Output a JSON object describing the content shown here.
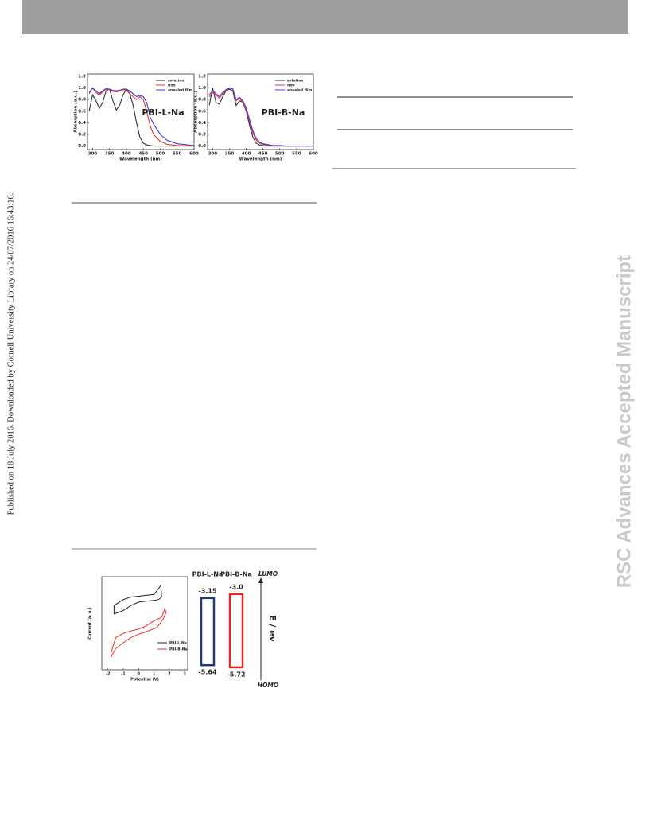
{
  "side_note": "Published on 18 July 2016. Downloaded by Cornell University Library on 24/07/2016 16:43:16.",
  "watermark": "RSC Advances Accepted Manuscript",
  "figures": [
    {
      "type": "line",
      "title": "PBI-L-Na",
      "x_label": "Wavelength (nm)",
      "y_label": "Absorption (a.u.)",
      "xlim": [
        285,
        600
      ],
      "ylim": [
        -0.06,
        1.24
      ],
      "xticks": [
        300,
        350,
        400,
        450,
        500,
        550,
        600
      ],
      "yticks": [
        {
          "value": 0,
          "label": "0.0"
        },
        0.2,
        0.4,
        0.6,
        0.8,
        {
          "value": 1,
          "label": "1.0"
        },
        1.2
      ],
      "x": [
        290,
        300,
        310,
        320,
        330,
        340,
        350,
        360,
        370,
        380,
        390,
        400,
        410,
        420,
        430,
        440,
        450,
        460,
        470,
        480,
        500,
        520,
        550,
        600
      ],
      "series": [
        {
          "name": "solution",
          "color": "#333333",
          "values": [
            0.6,
            0.88,
            0.78,
            0.65,
            0.75,
            0.95,
            0.98,
            0.78,
            0.62,
            0.7,
            0.88,
            0.98,
            0.9,
            0.7,
            0.4,
            0.15,
            0.05,
            0.02,
            0.01,
            0,
            0,
            0,
            0,
            0
          ]
        },
        {
          "name": "film",
          "color": "#e8322c",
          "values": [
            0.9,
            1.0,
            0.92,
            0.88,
            0.93,
            0.98,
            0.97,
            0.94,
            0.93,
            0.95,
            0.97,
            0.96,
            0.9,
            0.85,
            0.8,
            0.85,
            0.8,
            0.6,
            0.35,
            0.2,
            0.08,
            0.03,
            0.01,
            0
          ]
        },
        {
          "name": "anealed film",
          "color": "#3b3bd6",
          "values": [
            0.92,
            1.0,
            0.95,
            0.9,
            0.95,
            0.99,
            0.98,
            0.96,
            0.95,
            0.96,
            0.98,
            0.98,
            0.95,
            0.9,
            0.85,
            0.87,
            0.85,
            0.75,
            0.5,
            0.38,
            0.2,
            0.1,
            0.04,
            0.01
          ]
        }
      ]
    },
    {
      "type": "line",
      "title": "PBI-B-Na",
      "x_label": "Wavelength (nm)",
      "y_label": "Absorption (a.u.)",
      "xlim": [
        285,
        600
      ],
      "ylim": [
        -0.06,
        1.24
      ],
      "xticks": [
        300,
        350,
        400,
        450,
        500,
        550,
        600
      ],
      "yticks": [
        {
          "value": 0,
          "label": "0.0"
        },
        0.2,
        0.4,
        0.6,
        0.8,
        {
          "value": 1,
          "label": "1.0"
        },
        1.2
      ],
      "x": [
        290,
        300,
        310,
        320,
        330,
        340,
        350,
        360,
        370,
        380,
        390,
        400,
        410,
        420,
        430,
        440,
        450,
        460,
        470,
        480,
        500,
        520,
        550,
        600
      ],
      "series": [
        {
          "name": "solution",
          "color": "#333333",
          "values": [
            0.7,
            1.0,
            0.75,
            0.72,
            0.85,
            0.95,
            0.98,
            0.95,
            0.7,
            0.78,
            0.75,
            0.6,
            0.35,
            0.15,
            0.05,
            0.02,
            0.01,
            0,
            0,
            0,
            0,
            0,
            0,
            0
          ]
        },
        {
          "name": "film",
          "color": "#e8322c",
          "values": [
            0.85,
            0.92,
            0.88,
            0.82,
            0.9,
            0.95,
            1.0,
            0.98,
            0.78,
            0.82,
            0.75,
            0.62,
            0.4,
            0.22,
            0.1,
            0.05,
            0.03,
            0.02,
            0.01,
            0,
            0,
            0,
            0,
            0
          ]
        },
        {
          "name": "anealed film",
          "color": "#3b3bd6",
          "values": [
            0.88,
            0.95,
            0.9,
            0.85,
            0.92,
            0.97,
            1.0,
            0.99,
            0.8,
            0.84,
            0.78,
            0.66,
            0.45,
            0.26,
            0.13,
            0.07,
            0.04,
            0.03,
            0.02,
            0.01,
            0.01,
            0,
            0,
            0
          ]
        }
      ]
    },
    {
      "type": "loop",
      "x_label": "Potential (V)",
      "y_label": "Current (a. u.)",
      "xlim": [
        -2.4,
        3.2
      ],
      "ylim": [
        0,
        11
      ],
      "xticks": [
        -2,
        -1,
        0,
        1,
        2,
        3
      ],
      "series": [
        {
          "name": "PBI-L-Na",
          "color": "#222222",
          "x": [
            -1.6,
            -1.0,
            -0.5,
            0,
            0.5,
            1.0,
            1.3,
            1.45,
            1.5,
            1.3,
            1.0,
            0.5,
            0,
            -0.5,
            -1.0,
            -1.6
          ],
          "values": [
            7.6,
            8.3,
            8.6,
            8.7,
            8.8,
            8.9,
            9.6,
            10.0,
            8.6,
            8.3,
            8.2,
            8.1,
            8.0,
            7.6,
            7.0,
            6.6
          ]
        },
        {
          "name": "PBI-B-Na",
          "color": "#e8322c",
          "x": [
            -1.8,
            -1.5,
            -1.0,
            -0.5,
            0,
            0.5,
            1.0,
            1.5,
            1.7,
            1.8,
            1.6,
            1.2,
            0.5,
            0,
            -0.5,
            -1.0,
            -1.5,
            -1.8
          ],
          "values": [
            2.0,
            3.8,
            4.3,
            4.6,
            4.8,
            5.2,
            5.8,
            6.2,
            7.2,
            6.8,
            6.0,
            5.0,
            4.5,
            4.2,
            3.8,
            3.2,
            2.5,
            1.5
          ]
        }
      ]
    },
    {
      "type": "levels",
      "axis_label": "E / ev",
      "top_label": "LUMO",
      "bottom_label": "HOMO",
      "ylim": [
        -5.9,
        -2.8
      ],
      "columns": [
        {
          "name": "PBI-L-Na",
          "color": "#1f3a7a",
          "values": [
            -3.15,
            -5.64
          ]
        },
        {
          "name": "PBI-B-Na",
          "color": "#e02a2a",
          "values": [
            -3.0,
            -5.72
          ],
          "value_labels": [
            "-3.0",
            "-5.72"
          ]
        }
      ]
    }
  ]
}
